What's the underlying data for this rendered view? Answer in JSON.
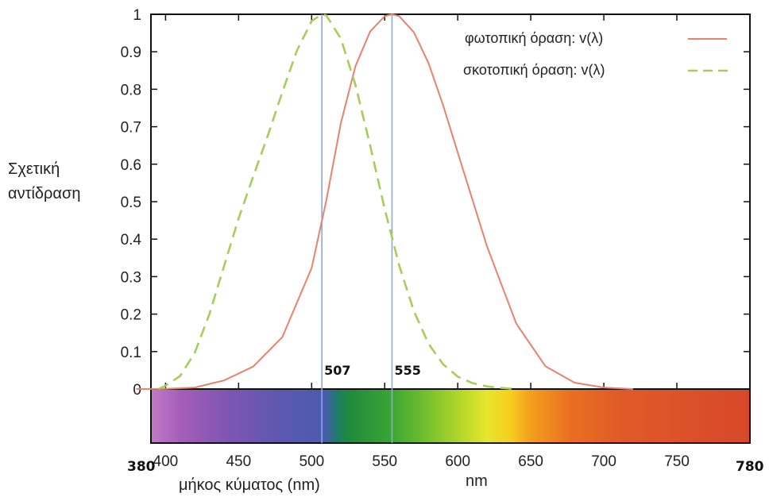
{
  "chart_data": {
    "type": "line",
    "ylabel_lines": [
      "Σχετική",
      "αντίδραση"
    ],
    "xlabel": "μήκος κύματος (nm)",
    "xunit": "nm",
    "xlim": [
      380,
      780
    ],
    "ylim": [
      0,
      1
    ],
    "plot_xlim": [
      390,
      800
    ],
    "x_ticks": [
      400,
      450,
      500,
      550,
      600,
      650,
      700,
      750
    ],
    "y_ticks": [
      "0",
      "0.1",
      "0.2",
      "0.3",
      "0.4",
      "0.5",
      "0.6",
      "0.7",
      "0.8",
      "0.9",
      "1"
    ],
    "edge_labels": [
      "380",
      "780"
    ],
    "legend_position": "top-right",
    "series": [
      {
        "name": "φωτοπική όραση: v(λ)",
        "style": "solid",
        "color": "#e8826c",
        "x": [
          380,
          400,
          420,
          440,
          460,
          480,
          500,
          510,
          520,
          530,
          540,
          550,
          555,
          560,
          570,
          580,
          590,
          600,
          620,
          640,
          660,
          680,
          700,
          720
        ],
        "y": [
          0.0,
          0.0004,
          0.004,
          0.023,
          0.06,
          0.139,
          0.323,
          0.503,
          0.71,
          0.862,
          0.954,
          0.995,
          1.0,
          0.995,
          0.952,
          0.87,
          0.757,
          0.631,
          0.381,
          0.175,
          0.061,
          0.017,
          0.004,
          0.0
        ]
      },
      {
        "name": "σκοτοπική όραση: v(λ)",
        "style": "dashed",
        "color": "#a8cc5c",
        "x": [
          395,
          400,
          410,
          420,
          430,
          440,
          450,
          460,
          470,
          480,
          490,
          500,
          507,
          510,
          520,
          530,
          540,
          550,
          560,
          570,
          580,
          590,
          600,
          610,
          620,
          630,
          640
        ],
        "y": [
          0.0,
          0.009,
          0.035,
          0.097,
          0.2,
          0.328,
          0.455,
          0.567,
          0.676,
          0.793,
          0.904,
          0.982,
          1.0,
          0.997,
          0.935,
          0.811,
          0.65,
          0.481,
          0.329,
          0.208,
          0.121,
          0.066,
          0.033,
          0.016,
          0.007,
          0.003,
          0.0
        ]
      }
    ],
    "markers": [
      {
        "x": 507,
        "label": "507",
        "color": "#8aa8e0"
      },
      {
        "x": 555,
        "label": "555",
        "color": "#8aa8e0"
      }
    ]
  }
}
